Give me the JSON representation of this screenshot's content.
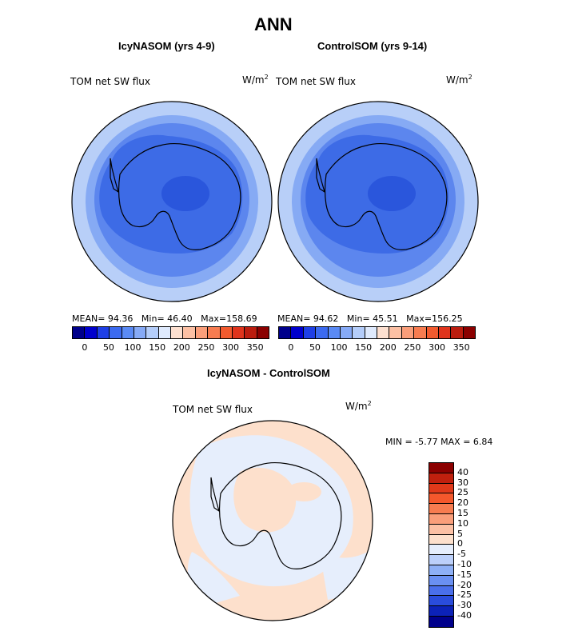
{
  "figure": {
    "title": "ANN",
    "panels": [
      {
        "subtitle": "IcyNASOM (yrs 4-9)",
        "field_label": "TOM net SW flux",
        "units_base": "W/m",
        "units_exp": "2",
        "stats": {
          "mean_label": "MEAN=",
          "mean": "94.36",
          "min_label": "Min=",
          "min": "46.40",
          "max_label": "Max=",
          "max": "158.69"
        }
      },
      {
        "subtitle": "ControlSOM (yrs 9-14)",
        "field_label": "TOM net SW flux",
        "units_base": "W/m",
        "units_exp": "2",
        "stats": {
          "mean_label": "MEAN=",
          "mean": "94.62",
          "min_label": "Min=",
          "min": "45.51",
          "max_label": "Max=",
          "max": "156.25"
        }
      }
    ],
    "colorbar_ticks": [
      "0",
      "50",
      "100",
      "150",
      "200",
      "250",
      "300",
      "350"
    ],
    "colorbar_colors": [
      "#00008b",
      "#0000cd",
      "#1e3fe6",
      "#3b6af0",
      "#5a8af5",
      "#86aaf7",
      "#b4cdfa",
      "#dfeafd",
      "#fde0d0",
      "#fcc0a4",
      "#fa9e7a",
      "#f77c50",
      "#f25a2e",
      "#e0341c",
      "#bb1c0e",
      "#8b0000"
    ],
    "diff": {
      "subtitle": "IcyNASOM - ControlSOM",
      "field_label": "TOM net SW flux",
      "units_base": "W/m",
      "units_exp": "2",
      "min_text": "MIN =   -5.77",
      "max_text": "MAX =    6.84",
      "ticks": [
        "40",
        "30",
        "25",
        "20",
        "15",
        "10",
        "5",
        "0",
        "-5",
        "-10",
        "-15",
        "-20",
        "-25",
        "-30",
        "-40"
      ],
      "colors": [
        "#8b0000",
        "#c0200e",
        "#e0391a",
        "#f4582c",
        "#f77c50",
        "#fa9e7a",
        "#fcc0a4",
        "#fde0cc",
        "#e6eefc",
        "#bcd0fa",
        "#8eb0f6",
        "#6a90f2",
        "#4a6feb",
        "#2a4cdc",
        "#0c22b8",
        "#00008b"
      ]
    }
  }
}
